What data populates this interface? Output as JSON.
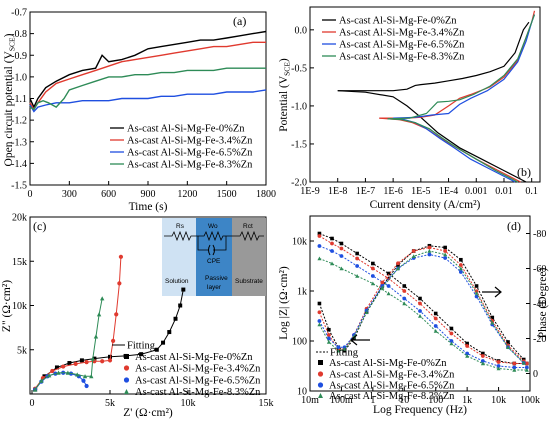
{
  "panels": {
    "a": {
      "letter": "(a)",
      "xlabel": "Time (s)",
      "ylabel": "Open circuit potential (V",
      "ylabel_sub": "SCE",
      "ylabel_end": ")",
      "xticks": [
        "0",
        "300",
        "600",
        "900",
        "1200",
        "1500",
        "1800"
      ],
      "yticks": [
        "-0.7",
        "-0.8",
        "-0.9",
        "-1.0",
        "-1.1",
        "-1.2",
        "-1.3",
        "-1.4",
        "-1.5"
      ],
      "legend": [
        "As-cast Al-Si-Mg-Fe-0%Zn",
        "As-cast Al-Si-Mg-Fe-3.4%Zn",
        "As-cast Al-Si-Mg-Fe-6.5%Zn",
        "As-cast Al-Si-Mg-Fe-8.3%Zn"
      ]
    },
    "b": {
      "letter": "(b)",
      "xlabel": "Current density (A/cm²)",
      "ylabel": "Potential (V",
      "ylabel_sub": "SCE",
      "ylabel_end": ")",
      "xticks": [
        "1E-9",
        "1E-8",
        "1E-7",
        "1E-6",
        "1E-5",
        "1E-4",
        "0.001",
        "0.01",
        "0.1"
      ],
      "yticks": [
        "0.0",
        "-0.5",
        "-1.0",
        "-1.5",
        "-2.0"
      ],
      "legend": [
        "As-cast Al-Si-Mg-Fe-0%Zn",
        "As-cast Al-Si-Mg-Fe-3.4%Zn",
        "As-cast Al-Si-Mg-Fe-6.5%Zn",
        "As-cast Al-Si-Mg-Fe-8.3%Zn"
      ]
    },
    "c": {
      "letter": "(c)",
      "xlabel": "Z' (Ω·cm²)",
      "ylabel": "Z\" (Ω·cm²)",
      "xticks": [
        "0",
        "5k",
        "10k",
        "15k"
      ],
      "yticks": [
        "5k",
        "10k",
        "15k",
        "20k"
      ],
      "legend": [
        "Fitting",
        "As-cast Al-Si-Mg-Fe-0%Zn",
        "As-cast Al-Si-Mg-Fe-3.4%Zn",
        "As-cast Al-Si-Mg-Fe-6.5%Zn",
        "As-cast Al-Si-Mg-Fe-8.3%Zn"
      ],
      "inset": {
        "rs": "Rs",
        "wo": "Wo",
        "rct": "Rct",
        "cpe": "CPE",
        "solution": "Solution",
        "passive1": "Passive",
        "passive2": "layer",
        "substrate": "Substrate"
      }
    },
    "d": {
      "letter": "(d)",
      "xlabel": "Log Frequency (Hz)",
      "ylabel_left": "Log |Z| (Ω·cm²)",
      "ylabel_right": "Phase (Degree)",
      "xticks": [
        "10m",
        "100m",
        "1",
        "10",
        "100",
        "1k",
        "10k",
        "100k"
      ],
      "yticks_left": [
        "10k",
        "1k",
        "100",
        "10"
      ],
      "yticks_right": [
        "-80",
        "-60",
        "-40",
        "-20",
        "0"
      ],
      "legend": [
        "Fitting",
        "As-cast Al-Si-Mg-Fe-0%Zn",
        "As-cast Al-Si-Mg-Fe-3.4%Zn",
        "As-cast Al-Si-Mg-Fe-6.5%Zn",
        "As-cast Al-Si-Mg-Fe-8.3%Zn"
      ]
    }
  },
  "colors": {
    "zn0": "#000000",
    "zn34": "#e03a2f",
    "zn65": "#1f4fe0",
    "zn83": "#2e8b57",
    "inset_solution": "#cfe2f3",
    "inset_passive": "#3d85c6",
    "inset_substrate": "#999999"
  },
  "chart_data": [
    {
      "panel": "a",
      "type": "line",
      "xlim": [
        0,
        1800
      ],
      "ylim": [
        -1.5,
        -0.7
      ],
      "series": [
        {
          "name": "As-cast Al-Si-Mg-Fe-0%Zn",
          "x": [
            0,
            30,
            60,
            120,
            200,
            300,
            400,
            500,
            550,
            600,
            700,
            800,
            900,
            1000,
            1100,
            1200,
            1300,
            1400,
            1500,
            1600,
            1700,
            1800
          ],
          "values": [
            -1.1,
            -1.14,
            -1.1,
            -1.05,
            -1.02,
            -0.99,
            -0.97,
            -0.96,
            -0.9,
            -0.93,
            -0.92,
            -0.9,
            -0.87,
            -0.86,
            -0.85,
            -0.84,
            -0.83,
            -0.83,
            -0.82,
            -0.81,
            -0.8,
            -0.79
          ]
        },
        {
          "name": "As-cast Al-Si-Mg-Fe-3.4%Zn",
          "x": [
            0,
            30,
            60,
            120,
            200,
            300,
            400,
            500,
            600,
            700,
            800,
            900,
            1000,
            1100,
            1200,
            1300,
            1400,
            1500,
            1600,
            1700,
            1800
          ],
          "values": [
            -1.12,
            -1.15,
            -1.12,
            -1.07,
            -1.03,
            -1.01,
            -0.99,
            -0.97,
            -0.95,
            -0.93,
            -0.92,
            -0.91,
            -0.9,
            -0.89,
            -0.88,
            -0.87,
            -0.86,
            -0.86,
            -0.85,
            -0.84,
            -0.84
          ]
        },
        {
          "name": "As-cast Al-Si-Mg-Fe-6.5%Zn",
          "x": [
            0,
            30,
            60,
            120,
            200,
            300,
            400,
            500,
            600,
            700,
            800,
            900,
            1000,
            1100,
            1200,
            1300,
            1400,
            1500,
            1600,
            1700,
            1800
          ],
          "values": [
            -1.13,
            -1.16,
            -1.14,
            -1.13,
            -1.12,
            -1.12,
            -1.11,
            -1.11,
            -1.11,
            -1.1,
            -1.1,
            -1.1,
            -1.09,
            -1.09,
            -1.08,
            -1.08,
            -1.08,
            -1.07,
            -1.07,
            -1.07,
            -1.06
          ]
        },
        {
          "name": "As-cast Al-Si-Mg-Fe-8.3%Zn",
          "x": [
            0,
            30,
            60,
            100,
            140,
            200,
            260,
            300,
            400,
            500,
            600,
            700,
            800,
            900,
            1000,
            1100,
            1200,
            1300,
            1400,
            1500,
            1600,
            1700,
            1800
          ],
          "values": [
            -1.14,
            -1.15,
            -1.12,
            -1.11,
            -1.12,
            -1.14,
            -1.1,
            -1.06,
            -1.04,
            -1.02,
            -1.0,
            -1.0,
            -0.99,
            -0.99,
            -0.98,
            -0.98,
            -0.97,
            -0.97,
            -0.97,
            -0.96,
            -0.96,
            -0.96,
            -0.96
          ]
        }
      ]
    },
    {
      "panel": "b",
      "type": "line",
      "xscale": "log",
      "xlim": [
        -9,
        -0.7
      ],
      "ylim": [
        -2.0,
        0.3
      ],
      "series": [
        {
          "name": "As-cast Al-Si-Mg-Fe-0%Zn",
          "x": [
            -8.0,
            -7.0,
            -6.0,
            -5.5,
            -5.2,
            -5.0,
            -4.5,
            -4.0,
            -3.5,
            -3.0,
            -2.5,
            -2.0,
            -1.6,
            -1.3,
            -1.1
          ],
          "values": [
            -0.8,
            -0.8,
            -0.8,
            -0.78,
            -0.73,
            -0.72,
            -0.7,
            -0.67,
            -0.64,
            -0.6,
            -0.55,
            -0.48,
            -0.3,
            0.0,
            0.1
          ]
        },
        {
          "name": "As-cast Al-Si-Mg-Fe-3.4%Zn",
          "x": [
            -6.5,
            -5.5,
            -5.0,
            -4.5,
            -4.0,
            -3.6,
            -3.2,
            -2.5,
            -2.0,
            -1.5,
            -1.2,
            -1.0,
            -0.9
          ],
          "values": [
            -1.16,
            -1.16,
            -1.15,
            -1.12,
            -1.0,
            -0.9,
            -0.85,
            -0.75,
            -0.62,
            -0.4,
            -0.1,
            0.1,
            0.25
          ]
        },
        {
          "name": "As-cast Al-Si-Mg-Fe-6.5%Zn",
          "x": [
            -6.0,
            -5.2,
            -4.6,
            -4.0,
            -3.6,
            -3.2,
            -2.6,
            -2.0,
            -1.5,
            -1.2,
            -1.0,
            -0.9
          ],
          "values": [
            -1.16,
            -1.15,
            -1.12,
            -1.1,
            -0.98,
            -0.9,
            -0.8,
            -0.65,
            -0.42,
            -0.15,
            0.1,
            0.2
          ]
        },
        {
          "name": "As-cast Al-Si-Mg-Fe-8.3%Zn",
          "x": [
            -6.2,
            -5.4,
            -4.8,
            -4.4,
            -4.0,
            -3.6,
            -3.1,
            -2.5,
            -2.0,
            -1.5,
            -1.2,
            -1.0,
            -0.9
          ],
          "values": [
            -1.17,
            -1.16,
            -1.1,
            -0.95,
            -0.94,
            -0.92,
            -0.85,
            -0.74,
            -0.6,
            -0.38,
            -0.1,
            0.1,
            0.2
          ]
        }
      ]
    },
    {
      "panel": "c",
      "type": "scatter",
      "xlim": [
        0,
        15000
      ],
      "ylim": [
        0,
        20000
      ],
      "series": [
        {
          "name": "As-cast Al-Si-Mg-Fe-0%Zn",
          "x": [
            200,
            800,
            1600,
            2400,
            3200,
            4000,
            5000,
            6000,
            7000,
            8000,
            8400,
            8800,
            9200,
            9500,
            9700
          ],
          "values": [
            500,
            2000,
            3000,
            3500,
            3800,
            4000,
            4200,
            4300,
            4500,
            5000,
            5800,
            7000,
            8500,
            10000,
            11800
          ]
        },
        {
          "name": "As-cast Al-Si-Mg-Fe-3.4%Zn",
          "x": [
            200,
            700,
            1300,
            2000,
            2800,
            3500,
            4000,
            4500,
            5000,
            5200,
            5400,
            5600,
            5700
          ],
          "values": [
            600,
            1800,
            2600,
            3100,
            3400,
            3600,
            3700,
            3700,
            3800,
            6000,
            9000,
            12500,
            15500
          ]
        },
        {
          "name": "As-cast Al-Si-Mg-Fe-6.5%Zn",
          "x": [
            200,
            600,
            1000,
            1500,
            2000,
            2500,
            3000,
            3300,
            3500
          ],
          "values": [
            500,
            1400,
            2000,
            2300,
            2400,
            2300,
            2000,
            1500,
            900
          ]
        },
        {
          "name": "As-cast Al-Si-Mg-Fe-8.3%Zn",
          "x": [
            200,
            600,
            1100,
            1700,
            2300,
            2900,
            3400,
            3800,
            3900,
            4100,
            4300,
            4500
          ],
          "values": [
            500,
            1500,
            2100,
            2400,
            2400,
            2200,
            2000,
            2000,
            4000,
            6500,
            9000,
            10800
          ]
        }
      ]
    },
    {
      "panel": "d",
      "type": "line",
      "xscale": "log",
      "xlim": [
        -2,
        5
      ],
      "ylim_logZ": [
        1,
        4.5
      ],
      "ylim_phase": [
        -90,
        10
      ],
      "series": [
        {
          "name": "As-cast Al-Si-Mg-Fe-0%Zn |Z|",
          "x": [
            -1.7,
            -1.3,
            -1,
            -0.5,
            0,
            0.5,
            1,
            1.5,
            2,
            2.5,
            3,
            3.5,
            4,
            4.5,
            4.9
          ],
          "values": [
            4.15,
            4.05,
            3.95,
            3.75,
            3.55,
            3.35,
            3.1,
            2.85,
            2.55,
            2.25,
            1.95,
            1.75,
            1.6,
            1.55,
            1.55
          ]
        },
        {
          "name": "As-cast Al-Si-Mg-Fe-3.4%Zn |Z|",
          "x": [
            -1.7,
            -1.3,
            -1,
            -0.5,
            0,
            0.5,
            1,
            1.5,
            2,
            2.5,
            3,
            3.5,
            4,
            4.5,
            4.9
          ],
          "values": [
            4.1,
            3.95,
            3.85,
            3.65,
            3.45,
            3.25,
            3.0,
            2.75,
            2.45,
            2.15,
            1.9,
            1.7,
            1.58,
            1.55,
            1.55
          ]
        },
        {
          "name": "As-cast Al-Si-Mg-Fe-6.5%Zn |Z|",
          "x": [
            -1.7,
            -1.3,
            -1,
            -0.5,
            0,
            0.5,
            1,
            1.5,
            2,
            2.5,
            3,
            3.5,
            4,
            4.5,
            4.9
          ],
          "values": [
            3.9,
            3.8,
            3.7,
            3.5,
            3.3,
            3.1,
            2.85,
            2.6,
            2.3,
            2.0,
            1.75,
            1.6,
            1.5,
            1.47,
            1.47
          ]
        },
        {
          "name": "As-cast Al-Si-Mg-Fe-8.3%Zn |Z|",
          "x": [
            -1.7,
            -1.3,
            -1,
            -0.5,
            0,
            0.5,
            1,
            1.5,
            2,
            2.5,
            3,
            3.5,
            4,
            4.5,
            4.9
          ],
          "values": [
            3.65,
            3.55,
            3.45,
            3.3,
            3.15,
            2.95,
            2.75,
            2.5,
            2.2,
            1.95,
            1.7,
            1.55,
            1.45,
            1.42,
            1.42
          ]
        },
        {
          "name": "As-cast Al-Si-Mg-Fe-0%Zn phase",
          "x": [
            -1.7,
            -1.4,
            -1.1,
            -0.9,
            -0.6,
            -0.2,
            0.3,
            0.8,
            1.3,
            1.8,
            2.3,
            2.8,
            3.3,
            3.8,
            4.3,
            4.8
          ],
          "values": [
            -40,
            -25,
            -15,
            -13,
            -20,
            -35,
            -50,
            -62,
            -70,
            -73,
            -72,
            -65,
            -50,
            -32,
            -18,
            -8
          ]
        },
        {
          "name": "As-cast Al-Si-Mg-Fe-3.4%Zn phase",
          "x": [
            -1.7,
            -1.4,
            -1.1,
            -0.9,
            -0.6,
            -0.2,
            0.3,
            0.8,
            1.3,
            1.8,
            2.3,
            2.8,
            3.3,
            3.8,
            4.3,
            4.8
          ],
          "values": [
            -35,
            -22,
            -14,
            -14,
            -22,
            -37,
            -52,
            -63,
            -70,
            -72,
            -70,
            -62,
            -47,
            -30,
            -16,
            -7
          ]
        },
        {
          "name": "As-cast Al-Si-Mg-Fe-6.5%Zn phase",
          "x": [
            -1.7,
            -1.4,
            -1.1,
            -0.9,
            -0.6,
            -0.2,
            0.3,
            0.8,
            1.3,
            1.8,
            2.3,
            2.8,
            3.3,
            3.8,
            4.3,
            4.8
          ],
          "values": [
            -30,
            -20,
            -15,
            -15,
            -22,
            -36,
            -50,
            -60,
            -66,
            -68,
            -66,
            -58,
            -44,
            -28,
            -15,
            -6
          ]
        },
        {
          "name": "As-cast Al-Si-Mg-Fe-8.3%Zn phase",
          "x": [
            -1.7,
            -1.4,
            -1.1,
            -0.9,
            -0.6,
            -0.2,
            0.3,
            0.8,
            1.3,
            1.8,
            2.3,
            2.8,
            3.3,
            3.8,
            4.3,
            4.8
          ],
          "values": [
            -28,
            -18,
            -13,
            -14,
            -21,
            -35,
            -49,
            -60,
            -67,
            -70,
            -68,
            -60,
            -46,
            -29,
            -15,
            -6
          ]
        }
      ]
    }
  ]
}
